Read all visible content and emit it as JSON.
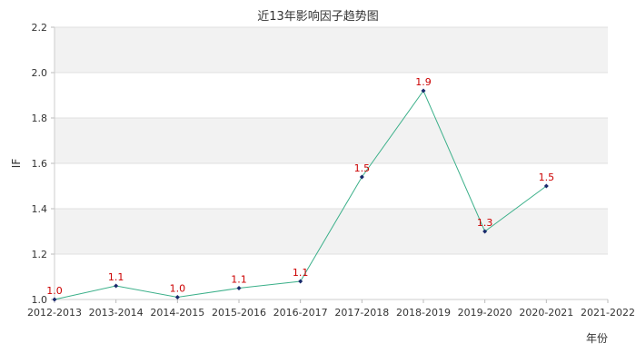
{
  "chart_data": {
    "type": "line",
    "title": "近13年影响因子趋势图",
    "xlabel": "年份",
    "ylabel": "IF",
    "categories": [
      "2012-2013",
      "2013-2014",
      "2014-2015",
      "2015-2016",
      "2016-2017",
      "2017-2018",
      "2018-2019",
      "2019-2020",
      "2020-2021",
      "2021-2022"
    ],
    "series": [
      {
        "values": [
          1.0,
          1.06,
          1.01,
          1.05,
          1.08,
          1.54,
          1.92,
          1.3,
          1.5,
          null
        ],
        "labels": [
          "1.0",
          "1.1",
          "1.0",
          "1.1",
          "1.1",
          "1.5",
          "1.9",
          "1.3",
          "1.5",
          ""
        ],
        "color": "#3cb08a"
      }
    ],
    "ylim": [
      1.0,
      2.2
    ],
    "yticks": [
      "1.0",
      "1.2",
      "1.4",
      "1.6",
      "1.8",
      "2.0",
      "2.2"
    ],
    "grid": true,
    "band_colors": [
      "#f2f2f2",
      "#ffffff"
    ],
    "marker_color": "#1a2a6c"
  }
}
